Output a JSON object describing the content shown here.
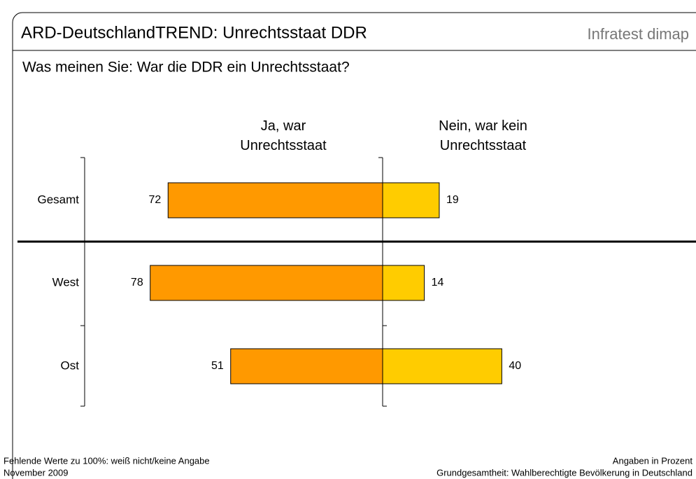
{
  "chart_data": {
    "type": "diverging_bar",
    "title": "ARD-DeutschlandTREND: Unrechtsstaat DDR",
    "brand": "Infratest dimap",
    "subtitle": "Was meinen Sie: War die DDR ein Unrechtsstaat?",
    "categories": [
      "Gesamt",
      "West",
      "Ost"
    ],
    "series": [
      {
        "name": "Ja, war Unrechtsstaat",
        "color": "#ff9900",
        "side": "left",
        "values": [
          72,
          78,
          51
        ]
      },
      {
        "name": "Nein, war kein Unrechtsstaat",
        "color": "#ffcc00",
        "side": "right",
        "values": [
          19,
          14,
          40
        ]
      }
    ],
    "xlim": [
      0,
      100
    ],
    "footnote_left": [
      "Fehlende Werte zu 100%: weiß nicht/keine Angabe",
      "November 2009"
    ],
    "footnote_right": [
      "Angaben in Prozent",
      "Grundgesamtheit: Wahlberechtigte Bevölkerung in Deutschland"
    ]
  }
}
